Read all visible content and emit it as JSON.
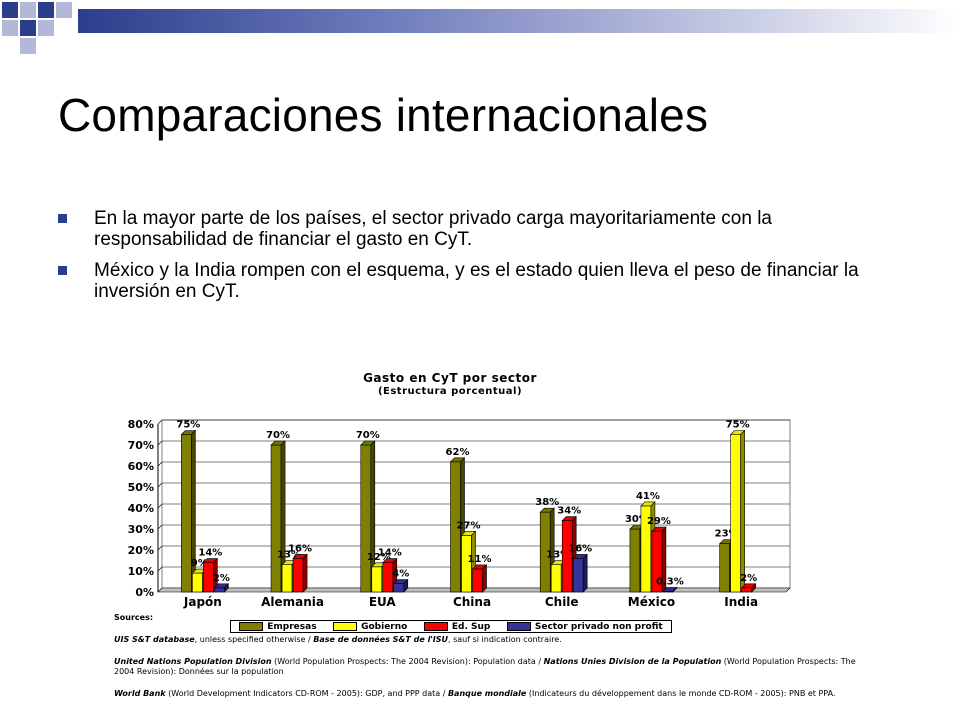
{
  "slide": {
    "title": "Comparaciones internacionales",
    "bullets": [
      "En la mayor parte de los países, el sector privado carga mayoritariamente con la responsabilidad de financiar el gasto en CyT.",
      "México y la India rompen con el esquema, y es el estado quien lleva el peso de financiar la inversión en CyT."
    ],
    "accent_colors": {
      "dark": "#2b3e8c",
      "light": "#b3b8d9"
    }
  },
  "chart_data": {
    "type": "bar",
    "title": "Gasto en CyT por sector",
    "subtitle": "(Estructura porcentual)",
    "categories": [
      "Japón",
      "Alemania",
      "EUA",
      "China",
      "Chile",
      "México",
      "India"
    ],
    "ylim": [
      0,
      80
    ],
    "yticks": [
      "0%",
      "10%",
      "20%",
      "30%",
      "40%",
      "50%",
      "60%",
      "70%",
      "80%"
    ],
    "grid": true,
    "legend_position": "bottom",
    "series": [
      {
        "name": "Empresas",
        "color": "#808000",
        "values": [
          75,
          70,
          70,
          62,
          38,
          30,
          23
        ],
        "labels": [
          "75%",
          "70%",
          "70%",
          "62%",
          "38%",
          "30%",
          "23%"
        ]
      },
      {
        "name": "Gobierno",
        "color": "#ffff00",
        "values": [
          9,
          13,
          12,
          27,
          13,
          41,
          75
        ],
        "labels": [
          "9%",
          "13%",
          "12%",
          "27%",
          "13%",
          "41%",
          "75%"
        ]
      },
      {
        "name": "Ed. Sup",
        "color": "#ff0000",
        "values": [
          14,
          16,
          14,
          11,
          34,
          29,
          2
        ],
        "labels": [
          "14%",
          "16%",
          "14%",
          "11%",
          "34%",
          "29%",
          "2%"
        ]
      },
      {
        "name": "Sector privado non profit",
        "color": "#333399",
        "values": [
          2,
          0,
          4,
          0,
          16,
          0.3,
          0
        ],
        "labels": [
          "2%",
          "",
          "4%",
          "",
          "16%",
          "0.3%",
          ""
        ]
      }
    ]
  },
  "sources": {
    "heading": "Sources:",
    "lines": [
      {
        "bold1": "UIS S&T database",
        "text1": ", unless specified otherwise / ",
        "bold2": "Base de données S&T de l'ISU",
        "text2": ", sauf si indication contraire."
      },
      {
        "bold1": "United Nations Population Division",
        "text1": " (World Population Prospects: The 2004 Revision): Population data / ",
        "bold2": "Nations Unies Division de la Population",
        "text2": " (World Population Prospects: The 2004 Revision): Données sur la population"
      },
      {
        "bold1": "World Bank",
        "text1": " (World Development Indicators CD-ROM - 2005): GDP, and PPP data / ",
        "bold2": "Banque mondiale",
        "text2": " (Indicateurs du développement dans le monde CD-ROM - 2005): PNB et PPA."
      }
    ]
  }
}
